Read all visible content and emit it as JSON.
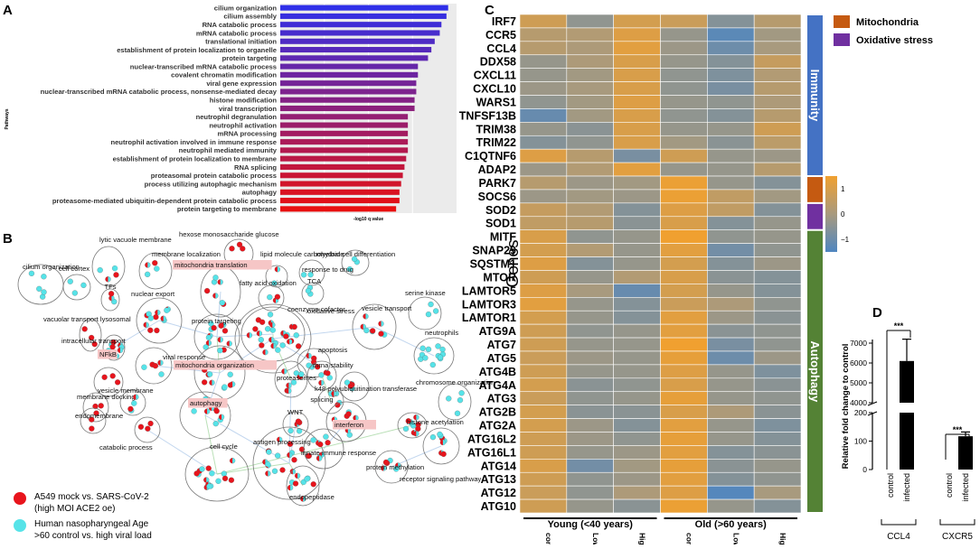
{
  "panel_letters": {
    "a": "A",
    "b": "B",
    "c": "C",
    "d": "D"
  },
  "colors": {
    "heat_high": "#f0a030",
    "heat_mid": "#a89a7e",
    "heat_low": "#4f86c0",
    "immunity": "#4472c4",
    "mitochondria": "#c55a11",
    "oxidative": "#7030a0",
    "autophagy": "#548235",
    "mock_dot": "#e8141c",
    "age_dot": "#56e3e8",
    "bar_black": "#000000"
  },
  "chart_data": [
    {
      "id": "A",
      "type": "bar",
      "orientation": "horizontal",
      "ylabel": "Pathways",
      "xlabel": "-log10 q value",
      "categories": [
        "cilium organization",
        "cilium assembly",
        "RNA catabolic process",
        "mRNA catabolic process",
        "translational initiation",
        "establishment of protein localization to organelle",
        "protein targeting",
        "nuclear-transcribed mRNA catabolic process",
        "covalent chromatin modification",
        "viral gene expression",
        "nuclear-transcribed mRNA catabolic process, nonsense-mediated decay",
        "histone modification",
        "viral transcription",
        "neutrophil degranulation",
        "neutrophil activation",
        "mRNA processing",
        "neutrophil activation involved in immune response",
        "neutrophil mediated immunity",
        "establishment of protein localization to membrane",
        "RNA splicing",
        "proteasomal protein catabolic process",
        "process utilizing autophagic mechanism",
        "autophagy",
        "proteasome-mediated ubiquitin-dependent protein catabolic process",
        "protein targeting to membrane"
      ],
      "values": [
        10.0,
        9.9,
        9.6,
        9.5,
        9.2,
        9.0,
        8.8,
        8.2,
        8.2,
        8.1,
        8.1,
        8.0,
        8.0,
        7.6,
        7.6,
        7.6,
        7.6,
        7.6,
        7.5,
        7.4,
        7.3,
        7.2,
        7.1,
        7.1,
        6.9
      ],
      "xlim": [
        0,
        10.5
      ],
      "color_gradient": [
        "#3030e8",
        "#e81010"
      ]
    },
    {
      "id": "C",
      "type": "heatmap",
      "ylabel": "Genes",
      "rows": [
        "IRF7",
        "CCR5",
        "CCL4",
        "DDX58",
        "CXCL11",
        "CXCL10",
        "WARS1",
        "TNFSF13B",
        "TRIM38",
        "TRIM22",
        "C1QTNF6",
        "ADAP2",
        "PARK7",
        "SOCS6",
        "SOD2",
        "SOD1",
        "MITF",
        "SNAP29",
        "SQSTM1",
        "MTOR",
        "LAMTOR5",
        "LAMTOR3",
        "LAMTOR1",
        "ATG9A",
        "ATG7",
        "ATG5",
        "ATG4B",
        "ATG4A",
        "ATG3",
        "ATG2B",
        "ATG2A",
        "ATG16L2",
        "ATG16L1",
        "ATG14",
        "ATG13",
        "ATG12",
        "ATG10"
      ],
      "columns": [
        "control",
        "Low titer",
        "High titer",
        "control",
        "Low titer",
        "High titer"
      ],
      "groups": [
        {
          "label": "Young (<40 years)",
          "span": 3
        },
        {
          "label": "Old (>60 years)",
          "span": 3
        }
      ],
      "colorbar": {
        "min": -1.5,
        "max": 1.5,
        "ticks": [
          1,
          0,
          -1
        ],
        "tick_labels": [
          "1",
          "0",
          "−1"
        ]
      },
      "categories": [
        {
          "label": "Immunity",
          "from": 0,
          "to": 11,
          "color": "#4472c4"
        },
        {
          "label": "",
          "from": 12,
          "to": 13,
          "color": "#c55a11"
        },
        {
          "label": "",
          "from": 14,
          "to": 15,
          "color": "#7030a0"
        },
        {
          "label": "Autophagy",
          "from": 16,
          "to": 36,
          "color": "#548235"
        }
      ],
      "legend": [
        {
          "label": "Mitochondria",
          "color": "#c55a11"
        },
        {
          "label": "Oxidative stress",
          "color": "#7030a0"
        }
      ],
      "values": [
        [
          0.8,
          -0.4,
          0.9,
          0.7,
          -0.6,
          0.3
        ],
        [
          0.3,
          0.2,
          1.1,
          -0.3,
          -1.3,
          -0.1
        ],
        [
          0.3,
          0.1,
          1.2,
          -0.2,
          -1.0,
          0.0
        ],
        [
          -0.3,
          0.1,
          1.0,
          -0.3,
          -0.6,
          0.6
        ],
        [
          -0.3,
          -0.1,
          1.0,
          -0.4,
          -0.7,
          0.2
        ],
        [
          -0.2,
          0.0,
          1.0,
          -0.4,
          -0.8,
          0.3
        ],
        [
          -0.4,
          -0.1,
          1.1,
          -0.3,
          -0.4,
          0.1
        ],
        [
          -1.1,
          -0.1,
          1.0,
          -0.4,
          -0.6,
          0.3
        ],
        [
          -0.3,
          -0.5,
          1.0,
          -0.3,
          -0.3,
          0.8
        ],
        [
          -0.6,
          -0.4,
          1.0,
          -0.1,
          -0.5,
          0.4
        ],
        [
          1.1,
          0.3,
          -0.8,
          0.8,
          -0.3,
          -0.2
        ],
        [
          -0.2,
          0.2,
          1.2,
          -0.3,
          -0.3,
          0.3
        ],
        [
          0.3,
          -0.2,
          -0.1,
          1.4,
          -0.3,
          -0.6
        ],
        [
          -0.2,
          -0.1,
          -0.2,
          1.4,
          0.5,
          -0.1
        ],
        [
          0.6,
          0.2,
          -0.6,
          1.1,
          0.5,
          -0.6
        ],
        [
          0.5,
          0.3,
          -0.5,
          1.0,
          -0.6,
          -0.3
        ],
        [
          1.0,
          -0.4,
          -0.3,
          1.5,
          -0.4,
          -0.3
        ],
        [
          0.9,
          0.2,
          -0.3,
          1.2,
          -0.9,
          -0.4
        ],
        [
          1.1,
          -0.6,
          -0.3,
          0.9,
          -0.6,
          -0.2
        ],
        [
          0.8,
          -0.3,
          0.2,
          1.0,
          -0.5,
          -0.6
        ],
        [
          1.1,
          0.0,
          -1.1,
          0.9,
          -0.3,
          -0.6
        ],
        [
          1.2,
          -0.3,
          -0.6,
          0.7,
          0.1,
          -0.4
        ],
        [
          0.9,
          -0.3,
          -0.6,
          1.2,
          -0.2,
          -0.5
        ],
        [
          0.8,
          -0.4,
          -0.3,
          1.2,
          -0.5,
          -0.4
        ],
        [
          0.8,
          -0.3,
          -0.3,
          1.5,
          -0.8,
          -0.4
        ],
        [
          0.7,
          -0.2,
          -0.3,
          1.3,
          -1.0,
          -0.2
        ],
        [
          0.8,
          -0.3,
          -0.3,
          1.1,
          -0.3,
          -0.7
        ],
        [
          0.9,
          -0.5,
          -0.4,
          1.0,
          -0.3,
          -0.5
        ],
        [
          0.7,
          -0.4,
          -0.3,
          1.3,
          -0.3,
          -0.4
        ],
        [
          0.9,
          -0.5,
          -0.5,
          1.0,
          0.1,
          -0.5
        ],
        [
          0.9,
          -0.2,
          -0.6,
          1.2,
          -0.3,
          -0.7
        ],
        [
          0.8,
          -0.2,
          -0.4,
          1.3,
          -0.3,
          -0.6
        ],
        [
          0.8,
          -0.3,
          -0.2,
          1.2,
          -0.6,
          -0.5
        ],
        [
          1.0,
          -0.9,
          -0.1,
          1.3,
          -0.5,
          -0.3
        ],
        [
          0.8,
          -0.4,
          -0.2,
          1.2,
          -0.6,
          -0.4
        ],
        [
          0.7,
          -0.4,
          0.1,
          1.1,
          -1.4,
          0.0
        ],
        [
          0.8,
          -0.3,
          -0.5,
          1.4,
          -0.3,
          -0.6
        ]
      ]
    },
    {
      "id": "D",
      "type": "bar",
      "ylabel": "Relative fold change to control",
      "axis_break": {
        "lower": [
          0,
          200
        ],
        "upper": [
          4000,
          7000
        ]
      },
      "yticks_lower": [
        0,
        100,
        200
      ],
      "yticks_upper": [
        4000,
        5000,
        6000,
        7000
      ],
      "categories": [
        "control",
        "infected",
        "control",
        "infected"
      ],
      "groups": [
        {
          "label": "CCL4",
          "values": [
            1,
            6100
          ],
          "error": [
            0,
            1100
          ],
          "significance": "***"
        },
        {
          "label": "CXCR5",
          "values": [
            1,
            117
          ],
          "error": [
            0,
            15
          ],
          "significance": "***"
        }
      ]
    }
  ],
  "network": {
    "legend": [
      {
        "label_line1": "A549 mock vs. SARS-CoV-2",
        "label_line2": "(high MOI ACE2 oe)",
        "color": "#e8141c"
      },
      {
        "label_line1": "Human nasopharyngeal Age",
        "label_line2": ">60 control vs. high viral load",
        "color": "#56e3e8"
      }
    ],
    "clusters": [
      {
        "label": "cilium organization",
        "highlight": false,
        "kind": "age",
        "dots": 5
      },
      {
        "label": "cell cortex",
        "highlight": false,
        "kind": "age",
        "dots": 3
      },
      {
        "label": "lytic vacuole membrane",
        "highlight": false,
        "kind": "mix",
        "dots": 4
      },
      {
        "label": "membrane localization",
        "highlight": false,
        "kind": "mix",
        "dots": 4
      },
      {
        "label": "TFs",
        "highlight": false,
        "kind": "mix",
        "dots": 3
      },
      {
        "label": "hexose monosaccharide glucose",
        "highlight": false,
        "kind": "mock",
        "dots": 3
      },
      {
        "label": "lipid molecule carbohydrate",
        "highlight": false,
        "kind": "mix",
        "dots": 2
      },
      {
        "label": "mitochondria translation",
        "highlight": true,
        "kind": "mix",
        "dots": 7
      },
      {
        "label": "myeloid cell differentiation",
        "highlight": false,
        "kind": "age",
        "dots": 3
      },
      {
        "label": "response to drug",
        "highlight": false,
        "kind": "age",
        "dots": 2
      },
      {
        "label": "fatty acid oxidation",
        "highlight": false,
        "kind": "mix",
        "dots": 3
      },
      {
        "label": "TCA",
        "highlight": false,
        "kind": "age",
        "dots": 3
      },
      {
        "label": "nuclear export",
        "highlight": false,
        "kind": "mix",
        "dots": 12
      },
      {
        "label": "serine kinase",
        "highlight": false,
        "kind": "age",
        "dots": 3
      },
      {
        "label": "coenzyme cofactor",
        "highlight": false,
        "kind": "mix",
        "dots": 8
      },
      {
        "label": "vacuolar transport lysosomal",
        "highlight": false,
        "kind": "mock",
        "dots": 3
      },
      {
        "label": "protein targeting",
        "highlight": false,
        "kind": "mix",
        "dots": 14
      },
      {
        "label": "oxidative stress",
        "highlight": false,
        "kind": "mix",
        "dots": 20
      },
      {
        "label": "vesicle transport",
        "highlight": false,
        "kind": "mix",
        "dots": 8
      },
      {
        "label": "neutrophils",
        "highlight": false,
        "kind": "age",
        "dots": 12
      },
      {
        "label": "intracellular transport",
        "highlight": false,
        "kind": "mix",
        "dots": 8
      },
      {
        "label": "apoptosis",
        "highlight": false,
        "kind": "mix",
        "dots": 5
      },
      {
        "label": "NFkB",
        "highlight": true,
        "kind": "mock",
        "dots": 3
      },
      {
        "label": "viral response",
        "highlight": false,
        "kind": "mix",
        "dots": 5
      },
      {
        "label": "mitochondria organization",
        "highlight": true,
        "kind": "mix",
        "dots": 10
      },
      {
        "label": "mrna stability",
        "highlight": false,
        "kind": "mix",
        "dots": 6
      },
      {
        "label": "membrane docking",
        "highlight": false,
        "kind": "mock",
        "dots": 2
      },
      {
        "label": "vesicle membrane",
        "highlight": false,
        "kind": "mix",
        "dots": 4
      },
      {
        "label": "proteasomes",
        "highlight": false,
        "kind": "mix",
        "dots": 8
      },
      {
        "label": "k48 polyubiquitination transferase",
        "highlight": false,
        "kind": "mix",
        "dots": 5
      },
      {
        "label": "chromosome organization",
        "highlight": false,
        "kind": "age",
        "dots": 4
      },
      {
        "label": "endomembrane",
        "highlight": false,
        "kind": "mock",
        "dots": 3
      },
      {
        "label": "autophagy",
        "highlight": true,
        "kind": "mix",
        "dots": 10
      },
      {
        "label": "splicing",
        "highlight": false,
        "kind": "mix",
        "dots": 6
      },
      {
        "label": "WNT",
        "highlight": false,
        "kind": "mix",
        "dots": 5
      },
      {
        "label": "interferon",
        "highlight": true,
        "kind": "mix",
        "dots": 9
      },
      {
        "label": "histone acetylation",
        "highlight": false,
        "kind": "mix",
        "dots": 9
      },
      {
        "label": "catabolic process",
        "highlight": false,
        "kind": "mock",
        "dots": 3
      },
      {
        "label": "cell cycle",
        "highlight": false,
        "kind": "mix",
        "dots": 16
      },
      {
        "label": "antigen processing",
        "highlight": false,
        "kind": "mix",
        "dots": 24
      },
      {
        "label": "innate immune response",
        "highlight": false,
        "kind": "mix",
        "dots": 8
      },
      {
        "label": "endopeptidase",
        "highlight": false,
        "kind": "mix",
        "dots": 4
      },
      {
        "label": "protein methylation",
        "highlight": false,
        "kind": "mix",
        "dots": 6
      },
      {
        "label": "receptor signaling pathway",
        "highlight": false,
        "kind": "mix",
        "dots": 8
      }
    ]
  }
}
